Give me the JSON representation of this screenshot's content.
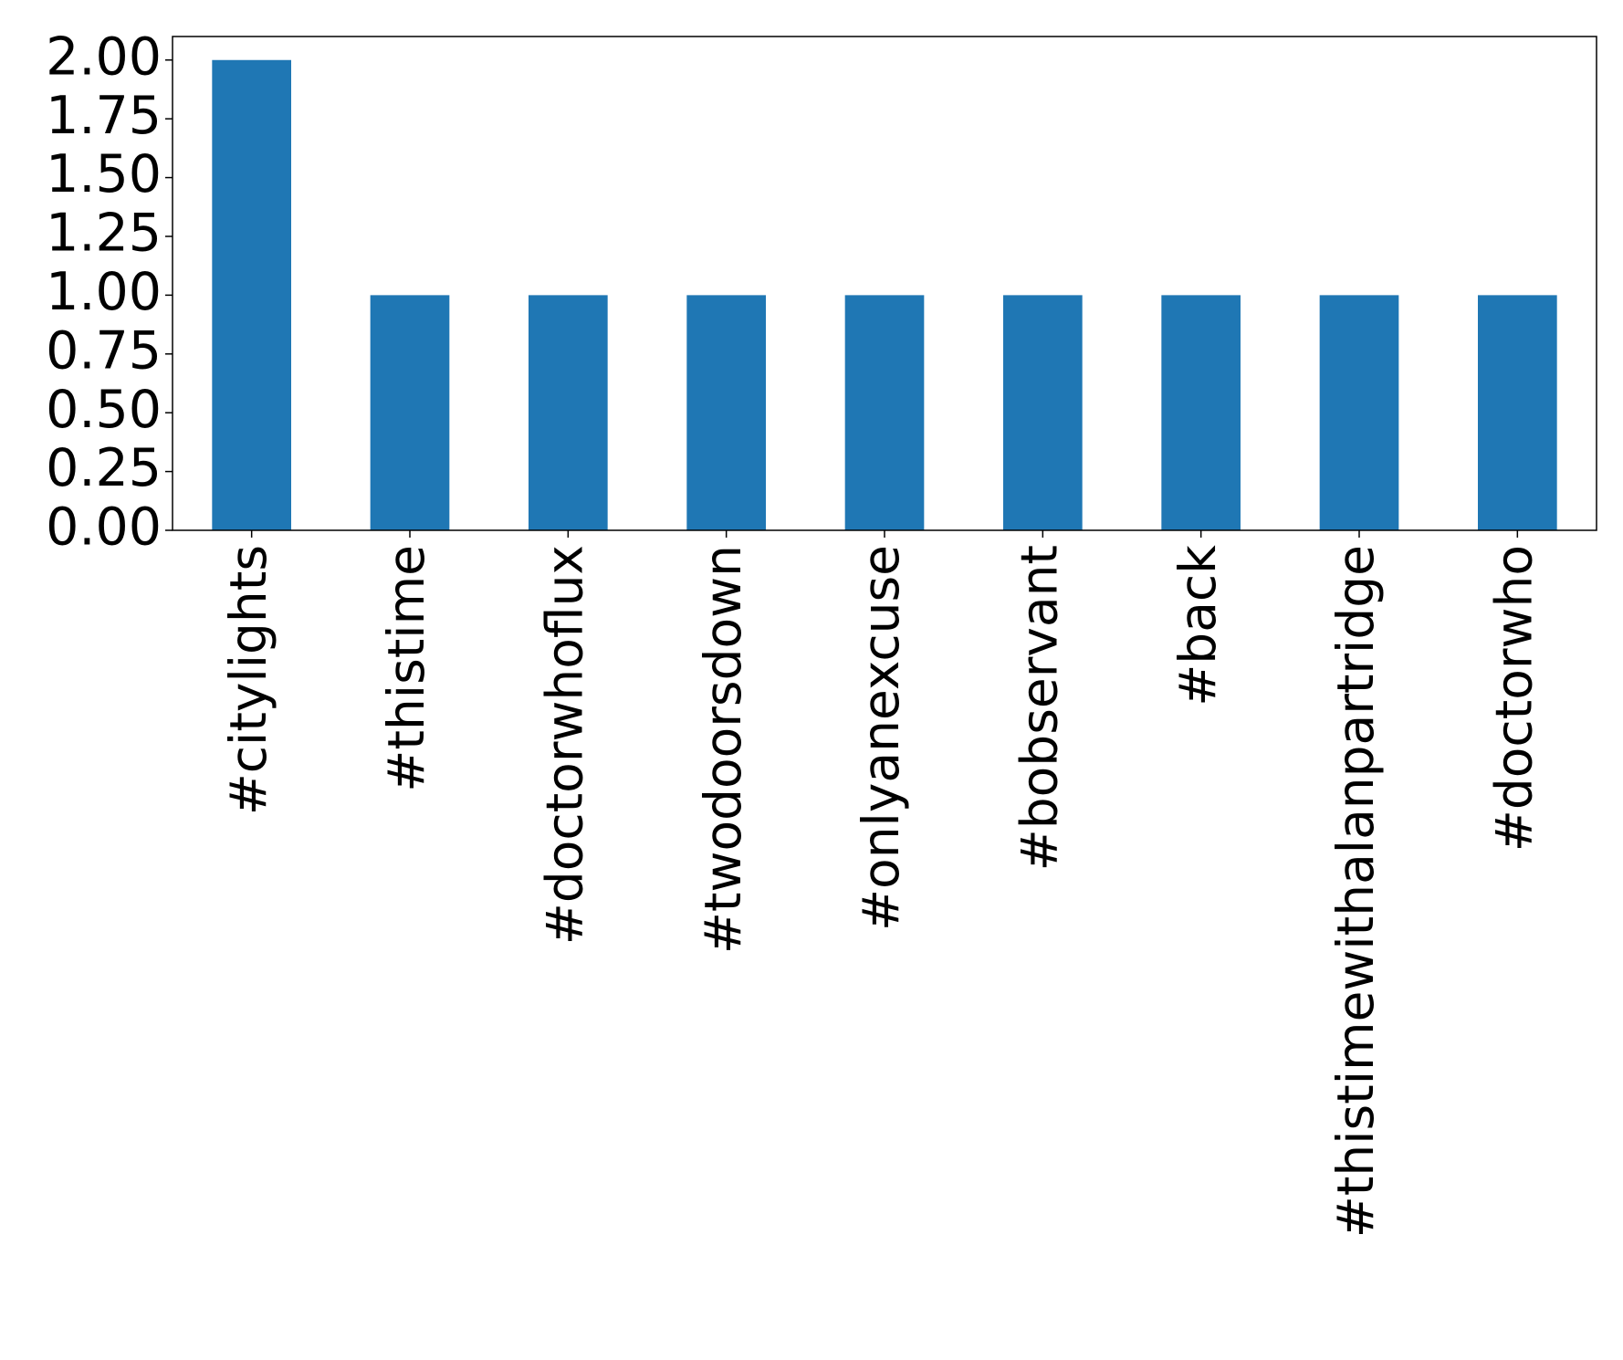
{
  "chart_data": {
    "type": "bar",
    "categories": [
      "#citylights",
      "#thistime",
      "#doctorwhoflux",
      "#twodoorsdown",
      "#onlyanexcuse",
      "#bobservant",
      "#back",
      "#thistimewithalanpartridge",
      "#doctorwho"
    ],
    "values": [
      2,
      1,
      1,
      1,
      1,
      1,
      1,
      1,
      1
    ],
    "color": "#1f77b4",
    "ylim": [
      0,
      2.1
    ],
    "yticks": [
      {
        "value": 0,
        "label": "0.00"
      },
      {
        "value": 0.25,
        "label": "0.25"
      },
      {
        "value": 0.5,
        "label": "0.50"
      },
      {
        "value": 0.75,
        "label": "0.75"
      },
      {
        "value": 1,
        "label": "1.00"
      },
      {
        "value": 1.25,
        "label": "1.25"
      },
      {
        "value": 1.5,
        "label": "1.50"
      },
      {
        "value": 1.75,
        "label": "1.75"
      },
      {
        "value": 2,
        "label": "2.00"
      }
    ],
    "grid": false
  }
}
